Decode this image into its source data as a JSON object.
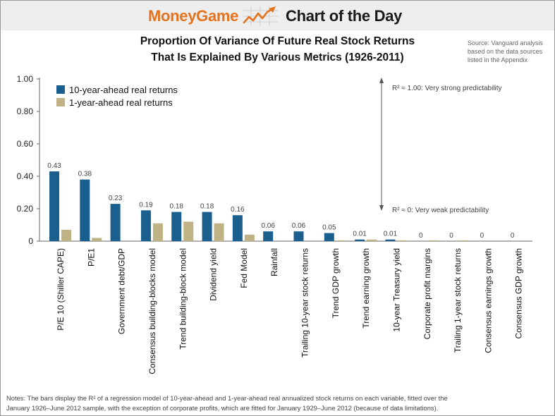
{
  "header": {
    "brand": "MoneyGame",
    "tagline": "Chart of the Day"
  },
  "source": {
    "line1": "Source: Vanguard analysis",
    "line2": "based on the data sources",
    "line3": "listed in the Appendix"
  },
  "notes": {
    "line1": "Notes: The bars display the R² of a regression model of 10-year-ahead and 1-year-ahead real annualized stock returns on each variable, fitted over the",
    "line2": "January 1926–June 2012 sample, with the exception of corporate profits, which are fitted for January 1929–June 2012 (because of data limitations)."
  },
  "colors": {
    "series1": "#1a5f8e",
    "series2": "#bfb285",
    "brand": "#e5721d"
  },
  "chart_data": {
    "type": "bar",
    "title": "Proportion Of Variance Of Future Real Stock Returns That Is Explained By Various Metrics (1926-2011)",
    "title_line1": "Proportion Of Variance Of Future Real Stock Returns",
    "title_line2": "That Is Explained By Various Metrics (1926-2011)",
    "ylim": [
      0,
      1
    ],
    "yticks": [
      "0",
      "0.20",
      "0.40",
      "0.60",
      "0.80",
      "1.00"
    ],
    "legend_position": "top-left",
    "categories": [
      "P/E 10 (Shiller CAPE)",
      "P/E1",
      "Government debt/GDP",
      "Consensus building-blocks model",
      "Trend building-block model",
      "Dividend yield",
      "Fed Model",
      "Rainfall",
      "Trailing 10-year stock returns",
      "Trend GDP growth",
      "Trend earning growth",
      "10-year Treasury yield",
      "Corporate profit margins",
      "Trailing 1-year stock returns",
      "Consensus earnings growth",
      "Consensus GDP growth"
    ],
    "series": [
      {
        "name": "10-year-ahead real returns",
        "values": [
          0.43,
          0.38,
          0.23,
          0.19,
          0.18,
          0.18,
          0.16,
          0.06,
          0.06,
          0.05,
          0.01,
          0.01,
          0,
          0,
          0,
          0
        ],
        "labels": [
          "0.43",
          "0.38",
          "0.23",
          "0.19",
          "0.18",
          "0.18",
          "0.16",
          "0.06",
          "0.06",
          "0.05",
          "0.01",
          "0.01",
          "0",
          "0",
          "0",
          "0"
        ]
      },
      {
        "name": "1-year-ahead real returns",
        "values": [
          0.07,
          0.02,
          0.0,
          0.11,
          0.12,
          0.11,
          0.04,
          0.0,
          0.0,
          0.005,
          0.01,
          0.005,
          0.005,
          0.005,
          0.0,
          0.0
        ]
      }
    ],
    "annotations": {
      "top": "R² ≈ 1.00: Very strong predictability",
      "bottom": "R² ≈ 0: Very weak predictability"
    }
  }
}
